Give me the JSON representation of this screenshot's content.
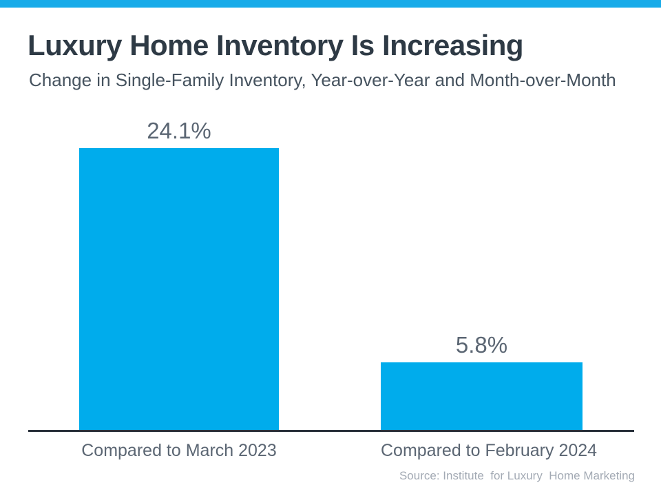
{
  "brand": {
    "topbar_color": "#18abe9"
  },
  "header": {
    "title": "Luxury Home Inventory Is Increasing",
    "subtitle": "Change in Single-Family Inventory, Year-over-Year and Month-over-Month"
  },
  "chart_data": {
    "type": "bar",
    "title": "Luxury Home Inventory Is Increasing",
    "subtitle": "Change in Single-Family Inventory, Year-over-Year and Month-over-Month",
    "categories": [
      "Compared to March 2023",
      "Compared to February 2024"
    ],
    "values": [
      24.1,
      5.8
    ],
    "value_labels": [
      "24.1%",
      "5.8%"
    ],
    "xlabel": "",
    "ylabel": "",
    "ylim": [
      0,
      24.1
    ],
    "grid": false,
    "legend": "none",
    "y_axis_shown": false,
    "baseline_axis_shown": true,
    "bar_color": "#00acec",
    "axis_color": "#29313b",
    "label_color": "#5b6673"
  },
  "footer": {
    "source": "Source: Institute  for Luxury  Home Marketing"
  }
}
